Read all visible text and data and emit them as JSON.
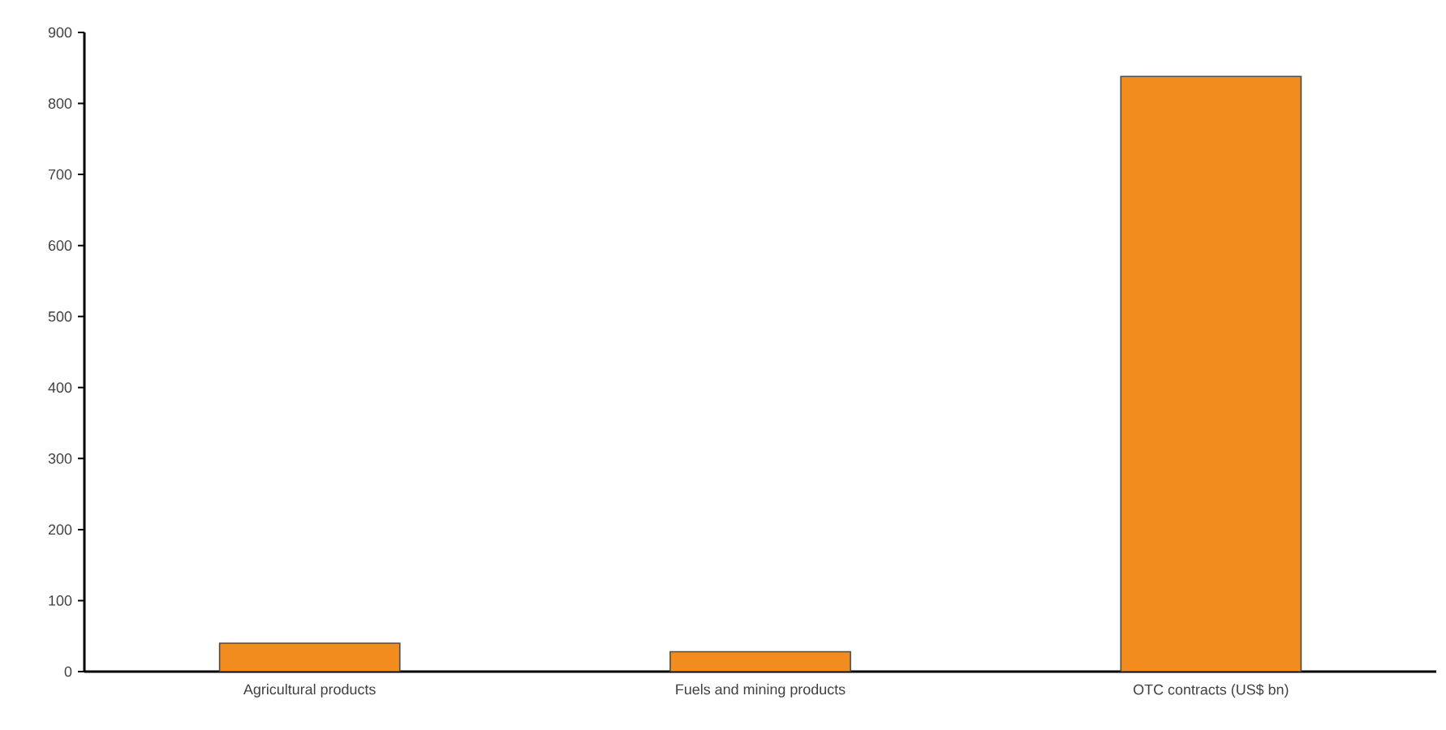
{
  "chart_data": {
    "type": "bar",
    "categories": [
      "Agricultural products",
      "Fuels and mining products",
      "OTC contracts (US$ bn)"
    ],
    "values": [
      40,
      28,
      838
    ],
    "color": "#f28c1f",
    "ylim": [
      0,
      900
    ],
    "yticks": [
      0,
      100,
      200,
      300,
      400,
      500,
      600,
      700,
      800,
      900
    ],
    "grid": false
  }
}
